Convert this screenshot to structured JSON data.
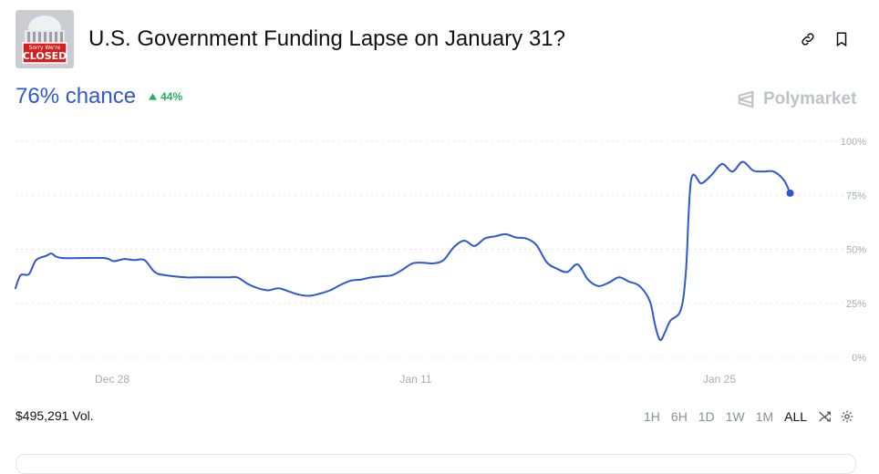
{
  "market": {
    "title": "U.S. Government Funding Lapse on January 31?",
    "thumb_text_top": "Sorry We're",
    "thumb_text_main": "CLOSED"
  },
  "summary": {
    "chance_label": "76% chance",
    "delta_label": "44%",
    "delta_direction": "up"
  },
  "brand": {
    "name": "Polymarket"
  },
  "footer": {
    "volume_label": "$495,291 Vol.",
    "ranges": [
      "1H",
      "6H",
      "1D",
      "1W",
      "1M",
      "ALL"
    ],
    "active_range": "ALL"
  },
  "colors": {
    "accent": "#2f58cd",
    "up": "#27ae60",
    "muted": "#bfc3c9"
  },
  "icons": [
    "link-icon",
    "bookmark-icon",
    "polymarket-logo-icon",
    "shuffle-icon",
    "settings-gear-icon"
  ],
  "chart_data": {
    "type": "line",
    "x_ticks": [
      "Dec 28",
      "Jan 11",
      "Jan 25"
    ],
    "y_ticks": [
      "100%",
      "75%",
      "50%",
      "25%",
      "0%"
    ],
    "ylim": [
      0,
      100
    ],
    "grid": true,
    "series": [
      {
        "values": [
          [
            -0.5,
            32
          ],
          [
            0,
            38
          ],
          [
            0.8,
            38.5
          ],
          [
            1.5,
            45
          ],
          [
            2.5,
            47
          ],
          [
            3,
            48
          ],
          [
            4,
            46
          ],
          [
            8,
            46
          ],
          [
            9,
            44.5
          ],
          [
            10,
            45.5
          ],
          [
            11,
            45
          ],
          [
            12,
            45
          ],
          [
            13,
            39.5
          ],
          [
            14,
            38
          ],
          [
            16,
            37
          ],
          [
            17,
            37
          ],
          [
            20,
            37
          ],
          [
            21,
            37
          ],
          [
            22,
            34
          ],
          [
            23,
            32
          ],
          [
            24,
            31
          ],
          [
            25,
            32
          ],
          [
            26,
            30.5
          ],
          [
            27,
            29
          ],
          [
            28,
            28.5
          ],
          [
            29,
            29.5
          ],
          [
            30,
            31
          ],
          [
            31,
            33.5
          ],
          [
            32,
            35.5
          ],
          [
            33,
            36
          ],
          [
            34,
            37
          ],
          [
            35,
            37.5
          ],
          [
            36,
            38
          ],
          [
            37,
            40.5
          ],
          [
            38,
            43.5
          ],
          [
            39,
            43.8
          ],
          [
            40,
            43.5
          ],
          [
            41,
            45
          ],
          [
            42,
            51
          ],
          [
            43,
            54
          ],
          [
            44,
            51.5
          ],
          [
            45,
            55
          ],
          [
            46,
            56
          ],
          [
            47,
            57
          ],
          [
            48,
            55.5
          ],
          [
            49,
            55
          ],
          [
            50,
            52
          ],
          [
            51,
            44
          ],
          [
            52,
            41
          ],
          [
            53,
            39.5
          ],
          [
            54,
            43
          ],
          [
            55,
            36
          ],
          [
            56,
            33
          ],
          [
            57,
            34.5
          ],
          [
            58,
            37
          ],
          [
            59,
            35
          ],
          [
            60,
            33
          ],
          [
            61,
            26
          ],
          [
            61.5,
            15
          ],
          [
            62,
            8
          ],
          [
            62.5,
            12
          ],
          [
            63,
            17
          ],
          [
            64,
            22
          ],
          [
            64.5,
            40
          ],
          [
            65,
            82
          ],
          [
            66,
            80.5
          ],
          [
            67,
            84.5
          ],
          [
            68,
            89.5
          ],
          [
            69,
            86
          ],
          [
            70,
            90.5
          ],
          [
            71,
            86.5
          ],
          [
            72,
            86
          ],
          [
            73,
            86
          ],
          [
            74,
            82
          ],
          [
            74.6,
            76
          ]
        ]
      }
    ]
  }
}
